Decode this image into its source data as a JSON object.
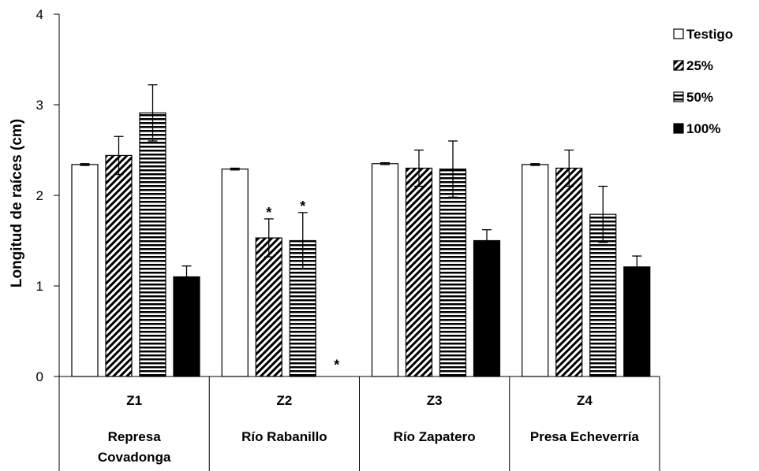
{
  "chart_data": {
    "type": "bar",
    "ylabel": "Longitud de raíces (cm)",
    "ylim": [
      0,
      4
    ],
    "yticks": [
      0,
      1,
      2,
      3,
      4
    ],
    "grid": false,
    "legend_position": "top-right",
    "categories": [
      {
        "code": "Z1",
        "lines": [
          "Represa",
          "Covadonga"
        ]
      },
      {
        "code": "Z2",
        "lines": [
          "Río Rabanillo"
        ]
      },
      {
        "code": "Z3",
        "lines": [
          "Río Zapatero"
        ]
      },
      {
        "code": "Z4",
        "lines": [
          "Presa Echeverría"
        ]
      }
    ],
    "series": [
      {
        "name": "Testigo",
        "pattern": "white",
        "values": [
          2.34,
          2.29,
          2.35,
          2.34
        ],
        "errors": [
          0.01,
          0.01,
          0.01,
          0.01
        ],
        "significant": [
          false,
          false,
          false,
          false
        ]
      },
      {
        "name": "25%",
        "pattern": "diagonal",
        "values": [
          2.44,
          1.53,
          2.3,
          2.3
        ],
        "errors": [
          0.21,
          0.21,
          0.2,
          0.2
        ],
        "significant": [
          false,
          true,
          false,
          false
        ]
      },
      {
        "name": "50%",
        "pattern": "horizontal",
        "values": [
          2.91,
          1.5,
          2.29,
          1.79
        ],
        "errors": [
          0.31,
          0.31,
          0.31,
          0.31
        ],
        "significant": [
          false,
          true,
          false,
          false
        ]
      },
      {
        "name": "100%",
        "pattern": "black",
        "values": [
          1.1,
          0,
          1.5,
          1.21
        ],
        "errors": [
          0.12,
          0,
          0.12,
          0.12
        ],
        "significant": [
          false,
          true,
          false,
          false
        ]
      }
    ],
    "significance_marker": "*",
    "colors": {
      "fill_black": "#000000",
      "fill_white": "#ffffff",
      "stroke": "#000000"
    }
  }
}
